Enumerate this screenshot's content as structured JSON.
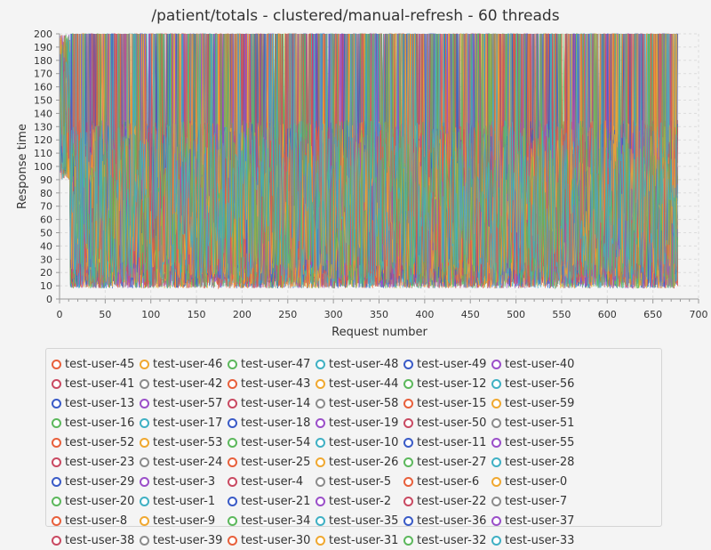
{
  "chart_data": {
    "type": "line",
    "title": "/patient/totals - clustered/manual-refresh - 60 threads",
    "xlabel": "Request number",
    "ylabel": "Response time",
    "xlim": [
      0,
      700
    ],
    "ylim": [
      0,
      200
    ],
    "x_ticks": [
      0,
      50,
      100,
      150,
      200,
      250,
      300,
      350,
      400,
      450,
      500,
      550,
      600,
      650,
      700
    ],
    "y_ticks": [
      0,
      10,
      20,
      30,
      40,
      50,
      60,
      70,
      80,
      90,
      100,
      110,
      120,
      130,
      140,
      150,
      160,
      170,
      180,
      190,
      200
    ],
    "grid": true,
    "legend_position": "bottom",
    "points_per_series": 678,
    "series_value_range": [
      8,
      200
    ],
    "series": [
      {
        "name": "test-user-45",
        "color": "#e8603c"
      },
      {
        "name": "test-user-46",
        "color": "#f0a830"
      },
      {
        "name": "test-user-47",
        "color": "#5cb85c"
      },
      {
        "name": "test-user-48",
        "color": "#3fb0c4"
      },
      {
        "name": "test-user-49",
        "color": "#3a5bc7"
      },
      {
        "name": "test-user-40",
        "color": "#9b4fc9"
      },
      {
        "name": "test-user-41",
        "color": "#c94a62"
      },
      {
        "name": "test-user-42",
        "color": "#8c8c8c"
      },
      {
        "name": "test-user-43",
        "color": "#e8603c"
      },
      {
        "name": "test-user-44",
        "color": "#f0a830"
      },
      {
        "name": "test-user-12",
        "color": "#5cb85c"
      },
      {
        "name": "test-user-56",
        "color": "#3fb0c4"
      },
      {
        "name": "test-user-13",
        "color": "#3a5bc7"
      },
      {
        "name": "test-user-57",
        "color": "#9b4fc9"
      },
      {
        "name": "test-user-14",
        "color": "#c94a62"
      },
      {
        "name": "test-user-58",
        "color": "#8c8c8c"
      },
      {
        "name": "test-user-15",
        "color": "#e8603c"
      },
      {
        "name": "test-user-59",
        "color": "#f0a830"
      },
      {
        "name": "test-user-16",
        "color": "#5cb85c"
      },
      {
        "name": "test-user-17",
        "color": "#3fb0c4"
      },
      {
        "name": "test-user-18",
        "color": "#3a5bc7"
      },
      {
        "name": "test-user-19",
        "color": "#9b4fc9"
      },
      {
        "name": "test-user-50",
        "color": "#c94a62"
      },
      {
        "name": "test-user-51",
        "color": "#8c8c8c"
      },
      {
        "name": "test-user-52",
        "color": "#e8603c"
      },
      {
        "name": "test-user-53",
        "color": "#f0a830"
      },
      {
        "name": "test-user-54",
        "color": "#5cb85c"
      },
      {
        "name": "test-user-10",
        "color": "#3fb0c4"
      },
      {
        "name": "test-user-11",
        "color": "#3a5bc7"
      },
      {
        "name": "test-user-55",
        "color": "#9b4fc9"
      },
      {
        "name": "test-user-23",
        "color": "#c94a62"
      },
      {
        "name": "test-user-24",
        "color": "#8c8c8c"
      },
      {
        "name": "test-user-25",
        "color": "#e8603c"
      },
      {
        "name": "test-user-26",
        "color": "#f0a830"
      },
      {
        "name": "test-user-27",
        "color": "#5cb85c"
      },
      {
        "name": "test-user-28",
        "color": "#3fb0c4"
      },
      {
        "name": "test-user-29",
        "color": "#3a5bc7"
      },
      {
        "name": "test-user-3",
        "color": "#9b4fc9"
      },
      {
        "name": "test-user-4",
        "color": "#c94a62"
      },
      {
        "name": "test-user-5",
        "color": "#8c8c8c"
      },
      {
        "name": "test-user-6",
        "color": "#e8603c"
      },
      {
        "name": "test-user-0",
        "color": "#f0a830"
      },
      {
        "name": "test-user-20",
        "color": "#5cb85c"
      },
      {
        "name": "test-user-1",
        "color": "#3fb0c4"
      },
      {
        "name": "test-user-21",
        "color": "#3a5bc7"
      },
      {
        "name": "test-user-2",
        "color": "#9b4fc9"
      },
      {
        "name": "test-user-22",
        "color": "#c94a62"
      },
      {
        "name": "test-user-7",
        "color": "#8c8c8c"
      },
      {
        "name": "test-user-8",
        "color": "#e8603c"
      },
      {
        "name": "test-user-9",
        "color": "#f0a830"
      },
      {
        "name": "test-user-34",
        "color": "#5cb85c"
      },
      {
        "name": "test-user-35",
        "color": "#3fb0c4"
      },
      {
        "name": "test-user-36",
        "color": "#3a5bc7"
      },
      {
        "name": "test-user-37",
        "color": "#9b4fc9"
      },
      {
        "name": "test-user-38",
        "color": "#c94a62"
      },
      {
        "name": "test-user-39",
        "color": "#8c8c8c"
      },
      {
        "name": "test-user-30",
        "color": "#e8603c"
      },
      {
        "name": "test-user-31",
        "color": "#f0a830"
      },
      {
        "name": "test-user-32",
        "color": "#5cb85c"
      },
      {
        "name": "test-user-33",
        "color": "#3fb0c4"
      }
    ]
  }
}
